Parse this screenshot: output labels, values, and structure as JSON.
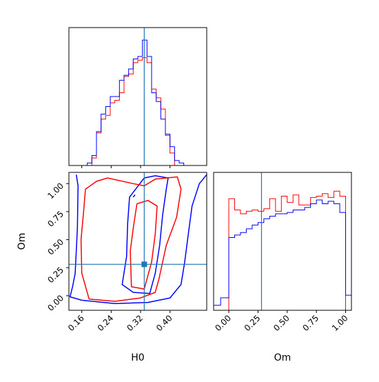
{
  "colors": {
    "red": "#ff0000",
    "blue": "#0000ff",
    "truth": "#1f77b4",
    "axis": "#000000"
  },
  "chart_data": [
    {
      "panel": "H0-marginal",
      "type": "histogram",
      "x_range": [
        0.125,
        0.5
      ],
      "ylim": [
        0,
        1.1
      ],
      "bin_edges": [
        0.125,
        0.1375,
        0.15,
        0.1625,
        0.175,
        0.1875,
        0.2,
        0.2125,
        0.225,
        0.2375,
        0.25,
        0.2625,
        0.275,
        0.2875,
        0.3,
        0.3125,
        0.325,
        0.3375,
        0.35,
        0.3625,
        0.375,
        0.3875,
        0.4,
        0.4125,
        0.425,
        0.4375,
        0.45,
        0.4625,
        0.475,
        0.4875,
        0.5
      ],
      "series": [
        {
          "color": "red",
          "values": [
            0,
            0,
            0,
            0,
            0,
            0.06,
            0.26,
            0.37,
            0.4,
            0.5,
            0.52,
            0.58,
            0.71,
            0.73,
            0.82,
            0.84,
            0.86,
            0.82,
            0.61,
            0.54,
            0.45,
            0.24,
            0.1,
            0,
            0,
            0,
            0,
            0,
            0,
            0
          ]
        },
        {
          "color": "blue",
          "values": [
            0,
            0,
            0,
            0,
            0.02,
            0.08,
            0.27,
            0.41,
            0.47,
            0.55,
            0.55,
            0.68,
            0.72,
            0.77,
            0.85,
            0.87,
            1.0,
            0.87,
            0.58,
            0.51,
            0.37,
            0.25,
            0.15,
            0.04,
            0.02,
            0,
            0,
            0,
            0,
            0
          ]
        }
      ],
      "truth_x": 0.33
    },
    {
      "panel": "Om-marginal",
      "type": "histogram",
      "x_range": [
        -0.13,
        1.05
      ],
      "ylim": [
        0,
        1.1
      ],
      "bin_edges": [
        -0.13,
        -0.07,
        0.0,
        0.05,
        0.1,
        0.15,
        0.2,
        0.25,
        0.3,
        0.35,
        0.4,
        0.45,
        0.5,
        0.55,
        0.6,
        0.65,
        0.7,
        0.75,
        0.8,
        0.85,
        0.9,
        0.95,
        1.0,
        1.05
      ],
      "series": [
        {
          "color": "red",
          "values": [
            0,
            0,
            0.89,
            0.8,
            0.77,
            0.79,
            0.8,
            0.79,
            0.81,
            0.89,
            0.79,
            0.91,
            0.86,
            0.92,
            0.84,
            0.84,
            0.9,
            0.91,
            0.93,
            0.9,
            0.95,
            0.91,
            0
          ]
        },
        {
          "color": "blue",
          "values": [
            0.04,
            0.1,
            0.58,
            0.6,
            0.62,
            0.65,
            0.68,
            0.7,
            0.73,
            0.75,
            0.77,
            0.77,
            0.78,
            0.8,
            0.8,
            0.82,
            0.85,
            0.88,
            0.85,
            0.87,
            0.85,
            0.78,
            0.12
          ]
        }
      ],
      "truth_x": 0.28
    },
    {
      "panel": "H0-Om-joint",
      "type": "contour",
      "x_range": [
        0.125,
        0.5
      ],
      "y_range": [
        -0.13,
        1.1
      ],
      "truth": {
        "x": 0.33,
        "y": 0.28
      },
      "contours": [
        {
          "color": "blue",
          "points": [
            [
              0.145,
              1.08
            ],
            [
              0.15,
              0.98
            ],
            [
              0.148,
              0.6
            ],
            [
              0.142,
              0.2
            ],
            [
              0.135,
              0.08
            ],
            [
              0.128,
              -0.01
            ],
            [
              0.16,
              -0.04
            ],
            [
              0.25,
              -0.07
            ],
            [
              0.34,
              -0.06
            ],
            [
              0.4,
              -0.02
            ],
            [
              0.43,
              0.1
            ],
            [
              0.44,
              0.3
            ],
            [
              0.45,
              0.55
            ],
            [
              0.46,
              0.8
            ],
            [
              0.48,
              1.0
            ],
            [
              0.5,
              1.08
            ]
          ]
        },
        {
          "color": "blue",
          "points": [
            [
              0.33,
              1.05
            ],
            [
              0.29,
              0.88
            ],
            [
              0.285,
              0.65
            ],
            [
              0.282,
              0.35
            ],
            [
              0.27,
              0.1
            ],
            [
              0.3,
              0.03
            ],
            [
              0.345,
              0.02
            ],
            [
              0.36,
              0.2
            ],
            [
              0.372,
              0.45
            ],
            [
              0.38,
              0.72
            ],
            [
              0.39,
              0.95
            ],
            [
              0.395,
              1.05
            ],
            [
              0.36,
              1.07
            ],
            [
              0.33,
              1.05
            ]
          ]
        },
        {
          "color": "blue",
          "points": [
            [
              0.3,
              0.88
            ],
            [
              0.305,
              0.9
            ]
          ]
        },
        {
          "color": "red",
          "points": [
            [
              0.17,
              0.95
            ],
            [
              0.2,
              1.02
            ],
            [
              0.23,
              1.05
            ],
            [
              0.3,
              1.0
            ],
            [
              0.33,
              0.98
            ],
            [
              0.36,
              1.04
            ],
            [
              0.42,
              1.06
            ],
            [
              0.43,
              0.95
            ],
            [
              0.418,
              0.7
            ],
            [
              0.39,
              0.45
            ],
            [
              0.37,
              0.15
            ],
            [
              0.36,
              0.03
            ],
            [
              0.32,
              -0.02
            ],
            [
              0.25,
              -0.05
            ],
            [
              0.18,
              -0.03
            ],
            [
              0.16,
              0.2
            ],
            [
              0.158,
              0.5
            ],
            [
              0.165,
              0.75
            ],
            [
              0.17,
              0.95
            ]
          ]
        },
        {
          "color": "red",
          "points": [
            [
              0.31,
              0.82
            ],
            [
              0.3,
              0.6
            ],
            [
              0.292,
              0.4
            ],
            [
              0.295,
              0.08
            ],
            [
              0.33,
              0.06
            ],
            [
              0.35,
              0.3
            ],
            [
              0.36,
              0.55
            ],
            [
              0.365,
              0.8
            ],
            [
              0.34,
              0.85
            ],
            [
              0.31,
              0.82
            ]
          ]
        }
      ]
    }
  ],
  "axes": {
    "h0": {
      "label": "H0",
      "ticks": [
        0.16,
        0.24,
        0.32,
        0.4
      ],
      "tick_labels": [
        "0.16",
        "0.24",
        "0.32",
        "0.40"
      ]
    },
    "om_y": {
      "label": "Om",
      "ticks": [
        0,
        0.25,
        0.5,
        0.75,
        1
      ],
      "tick_labels": [
        "0.00",
        "0.25",
        "0.50",
        "0.75",
        "1.00"
      ]
    },
    "om_x": {
      "label": "Om",
      "ticks": [
        0,
        0.25,
        0.5,
        0.75,
        1
      ],
      "tick_labels": [
        "0.00",
        "0.25",
        "0.50",
        "0.75",
        "1.00"
      ]
    }
  }
}
